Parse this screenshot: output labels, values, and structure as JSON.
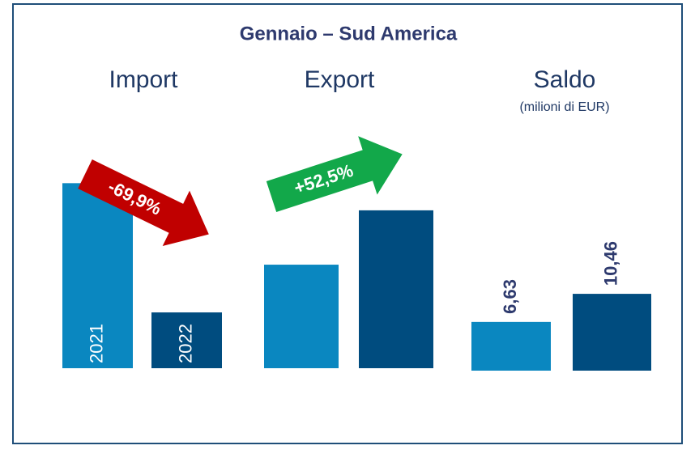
{
  "title": "Gennaio – Sud America",
  "chart_data": [
    {
      "type": "bar",
      "title": "Import",
      "categories": [
        "2021",
        "2022"
      ],
      "values": [
        25.2,
        7.6
      ],
      "colors": [
        "#0a87c0",
        "#004c7f"
      ],
      "ylim": [
        0,
        27
      ],
      "annotation": {
        "text": "-69,9%",
        "color": "#c00000"
      }
    },
    {
      "type": "bar",
      "title": "Export",
      "categories": [
        null,
        null
      ],
      "values": [
        14.1,
        21.5
      ],
      "colors": [
        "#0a87c0",
        "#004c7f"
      ],
      "ylim": [
        0,
        27
      ],
      "annotation": {
        "text": "+52,5%",
        "color": "#12a84a"
      }
    },
    {
      "type": "bar",
      "title": "Saldo",
      "subtitle": "(milioni di EUR)",
      "categories": [
        null,
        null
      ],
      "values": [
        6.63,
        10.46
      ],
      "value_labels": [
        "6,63",
        "10,46"
      ],
      "colors": [
        "#0a87c0",
        "#004c7f"
      ],
      "ylim": [
        0,
        27
      ]
    }
  ]
}
